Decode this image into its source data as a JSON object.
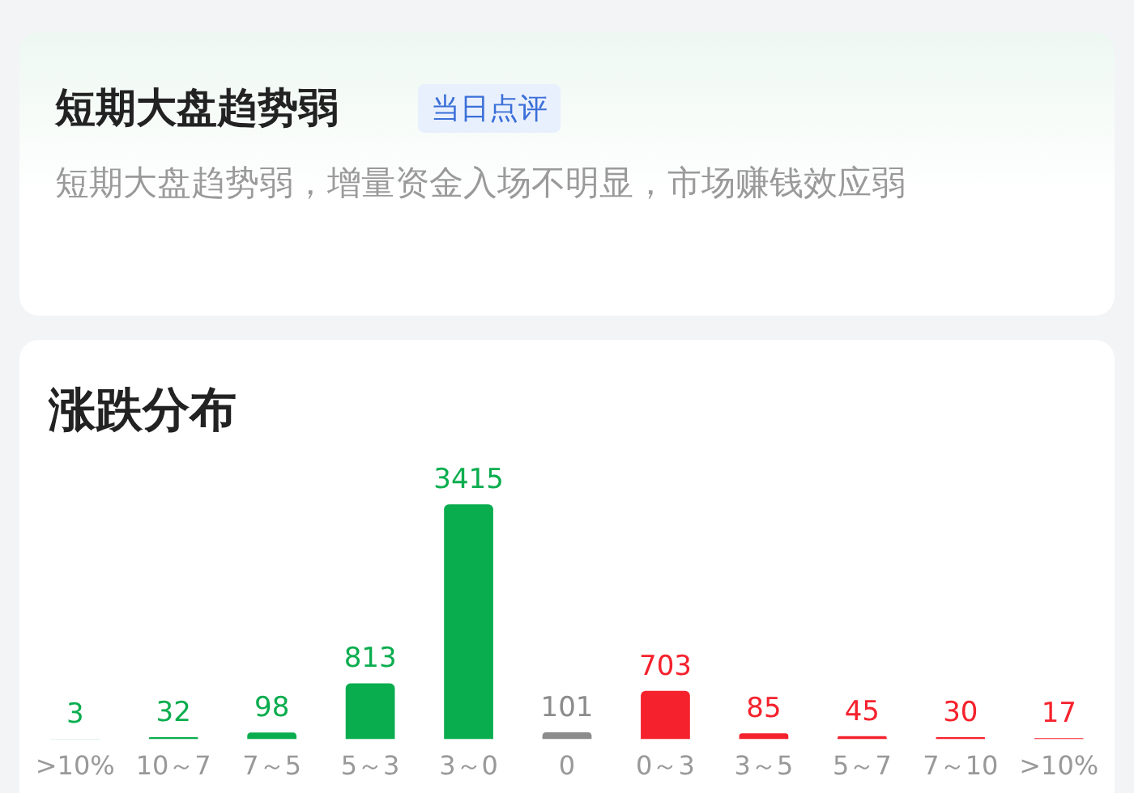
{
  "chart_data": [
    {
      "type": "other",
      "title": "短期大盘趋势弱",
      "annotations": [
        "当日点评",
        "短期大盘趋势弱，增量资金入场不明显，市场赚钱效应弱"
      ]
    },
    {
      "type": "bar",
      "title": "涨跌分布",
      "categories": [
        ">10%",
        "10～7",
        "7～5",
        "5～3",
        "3～0",
        "0",
        "0～3",
        "3～5",
        "5～7",
        "7～10",
        ">10%"
      ],
      "values": [
        3,
        32,
        98,
        813,
        3415,
        101,
        703,
        85,
        45,
        30,
        17
      ],
      "colors": [
        "#0aad4e",
        "#0aad4e",
        "#0aad4e",
        "#0aad4e",
        "#0aad4e",
        "#8c8c8c",
        "#f5222d",
        "#f5222d",
        "#f5222d",
        "#f5222d",
        "#f5222d"
      ],
      "data_labels": true,
      "grid": false,
      "legend": false
    }
  ]
}
